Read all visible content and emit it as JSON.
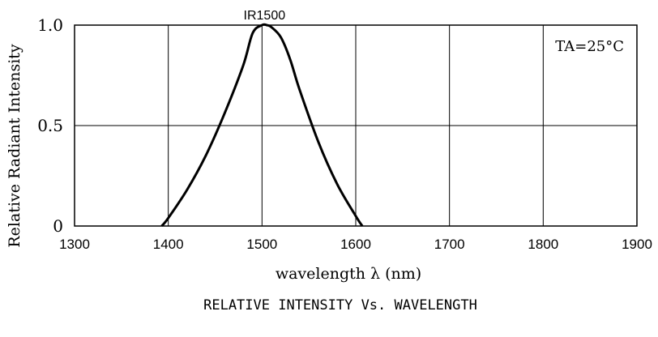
{
  "chart_data": {
    "type": "line",
    "title": "",
    "caption": "RELATIVE INTENSITY Vs. WAVELENGTH",
    "xlabel": "wavelength λ (nm)",
    "ylabel": "Relative Radiant Intensity",
    "annotation": "TA=25°C",
    "xlim": [
      1300,
      1900
    ],
    "ylim": [
      0,
      1.0
    ],
    "x_ticks": [
      1300,
      1400,
      1500,
      1600,
      1700,
      1800,
      1900
    ],
    "x_tick_labels": [
      "1300",
      "1400",
      "1500",
      "1600",
      "1700",
      "1800",
      "1900"
    ],
    "y_ticks": [
      0,
      0.5,
      1.0
    ],
    "y_tick_labels": [
      "0",
      "0.5",
      "1.0"
    ],
    "grid": true,
    "series": [
      {
        "name": "IR1500",
        "x": [
          1393,
          1400,
          1420,
          1440,
          1460,
          1480,
          1490,
          1500,
          1505,
          1510,
          1520,
          1530,
          1540,
          1560,
          1580,
          1600,
          1607
        ],
        "y": [
          0.0,
          0.04,
          0.18,
          0.35,
          0.56,
          0.8,
          0.96,
          1.0,
          1.0,
          0.99,
          0.94,
          0.83,
          0.68,
          0.42,
          0.21,
          0.05,
          0.0
        ]
      }
    ]
  }
}
